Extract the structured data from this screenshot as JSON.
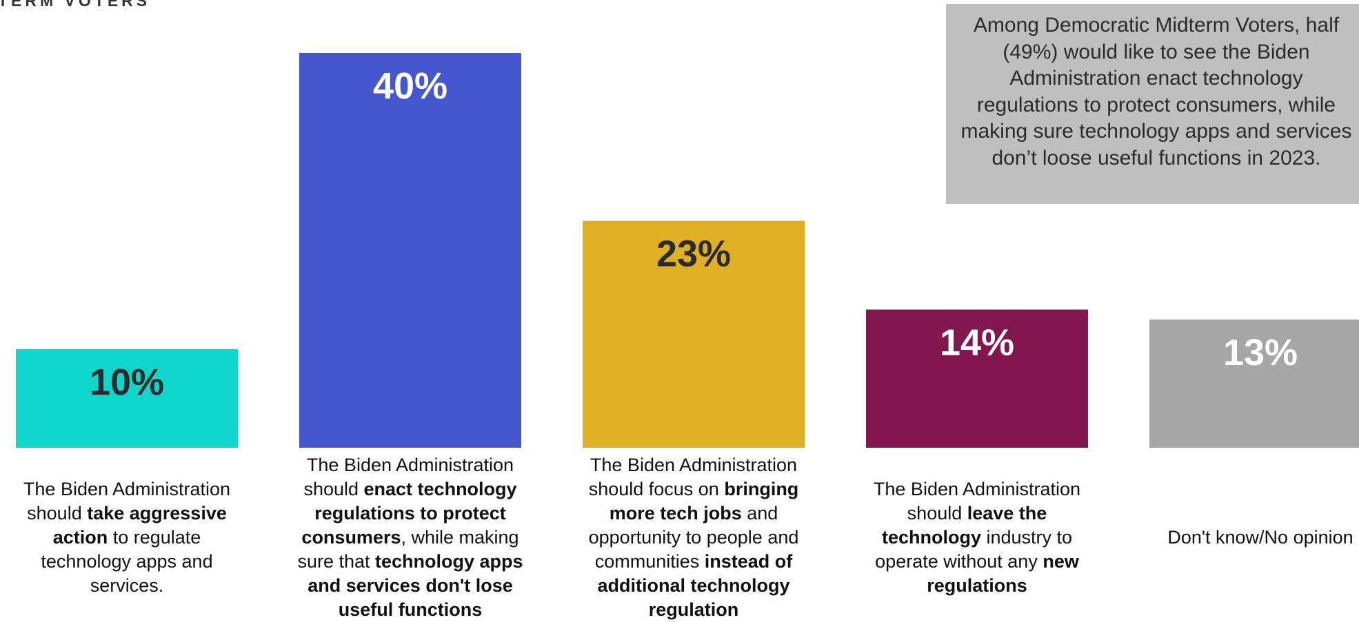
{
  "header": {
    "title": "TERM VOTERS"
  },
  "callout": {
    "text": "Among Democratic Midterm Voters, half (49%) would like to see the Biden Administration enact technology regulations to protect consumers, while making sure technology apps and services don’t loose useful functions in 2023."
  },
  "chart_data": {
    "type": "bar",
    "title": "",
    "xlabel": "",
    "ylabel": "",
    "ylim": [
      0,
      40
    ],
    "grid": false,
    "legend": "none",
    "values": [
      10,
      40,
      23,
      14,
      13
    ],
    "data_labels": [
      "10%",
      "40%",
      "23%",
      "14%",
      "13%"
    ],
    "colors": [
      "#0fd6cc",
      "#4557cf",
      "#e0b024",
      "#82174d",
      "#a6a6a6"
    ],
    "label_colors": [
      "#2b2b2b",
      "#ffffff",
      "#2b2b2b",
      "#ffffff",
      "#ffffff"
    ],
    "categories": [
      {
        "plain": "The Biden Administration should take aggressive action to regulate technology apps and services.",
        "segments": [
          {
            "t": "The Biden Administration should ",
            "b": false
          },
          {
            "t": "take aggressive action",
            "b": true
          },
          {
            "t": " to regulate technology apps and services.",
            "b": false
          }
        ]
      },
      {
        "plain": "The Biden Administration should enact technology regulations to protect consumers, while making sure that technology apps and services don't lose useful functions",
        "segments": [
          {
            "t": "The Biden Administration should ",
            "b": false
          },
          {
            "t": "enact technology regulations to protect consumers",
            "b": true
          },
          {
            "t": ", while making sure that ",
            "b": false
          },
          {
            "t": "technology apps and services don't lose useful functions",
            "b": true
          }
        ]
      },
      {
        "plain": "The Biden Administration should focus on bringing more tech jobs and opportunity to people and communities instead of additional technology regulation",
        "segments": [
          {
            "t": "The Biden Administration should focus on ",
            "b": false
          },
          {
            "t": "bringing more tech jobs",
            "b": true
          },
          {
            "t": " and opportunity to people and communities ",
            "b": false
          },
          {
            "t": "instead of additional technology regulation",
            "b": true
          }
        ]
      },
      {
        "plain": "The Biden Administration should leave the technology industry to operate without any new regulations",
        "segments": [
          {
            "t": "The Biden Administration should ",
            "b": false
          },
          {
            "t": "leave the technology",
            "b": true
          },
          {
            "t": " industry to operate without any ",
            "b": false
          },
          {
            "t": "new regulations",
            "b": true
          }
        ]
      },
      {
        "plain": "Don't know/No opinion",
        "segments": [
          {
            "t": "Don't know/No opinion",
            "b": false
          }
        ]
      }
    ]
  }
}
